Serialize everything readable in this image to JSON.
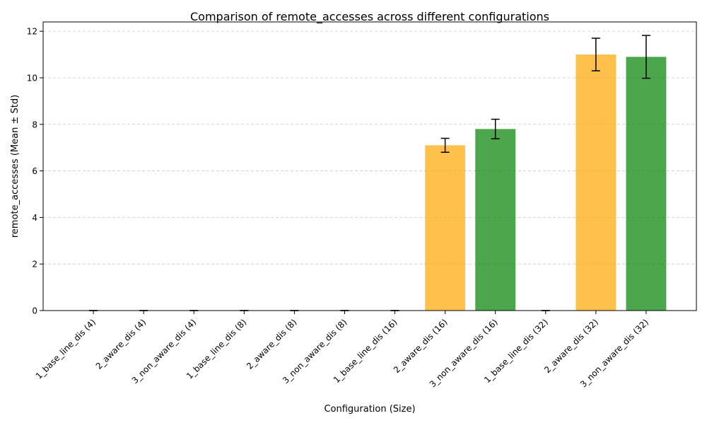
{
  "chart_data": {
    "type": "bar",
    "title": "Comparison of remote_accesses across different configurations",
    "xlabel": "Configuration (Size)",
    "ylabel": "remote_accesses (Mean ± Std)",
    "categories": [
      "1_base_line_dis (4)",
      "2_aware_dis (4)",
      "3_non_aware_dis (4)",
      "1_base_line_dis (8)",
      "2_aware_dis (8)",
      "3_non_aware_dis (8)",
      "1_base_line_dis (16)",
      "2_aware_dis (16)",
      "3_non_aware_dis (16)",
      "1_base_line_dis (32)",
      "2_aware_dis (32)",
      "3_non_aware_dis (32)"
    ],
    "values": [
      0,
      0,
      0,
      0,
      0,
      0,
      0,
      7.1,
      7.8,
      0,
      11.0,
      10.9
    ],
    "std": [
      0,
      0,
      0,
      0,
      0,
      0,
      0,
      0.3,
      0.42,
      0,
      0.7,
      0.92
    ],
    "colors": [
      "#1f77b4",
      "#ffa500",
      "#008000",
      "#1f77b4",
      "#ffa500",
      "#008000",
      "#1f77b4",
      "#ffa500",
      "#008000",
      "#1f77b4",
      "#ffa500",
      "#008000"
    ],
    "bar_opacity": 0.7,
    "ylim": [
      0,
      12.4
    ],
    "yticks": [
      0,
      2,
      4,
      6,
      8,
      10,
      12
    ],
    "grid": "y-dashed"
  }
}
